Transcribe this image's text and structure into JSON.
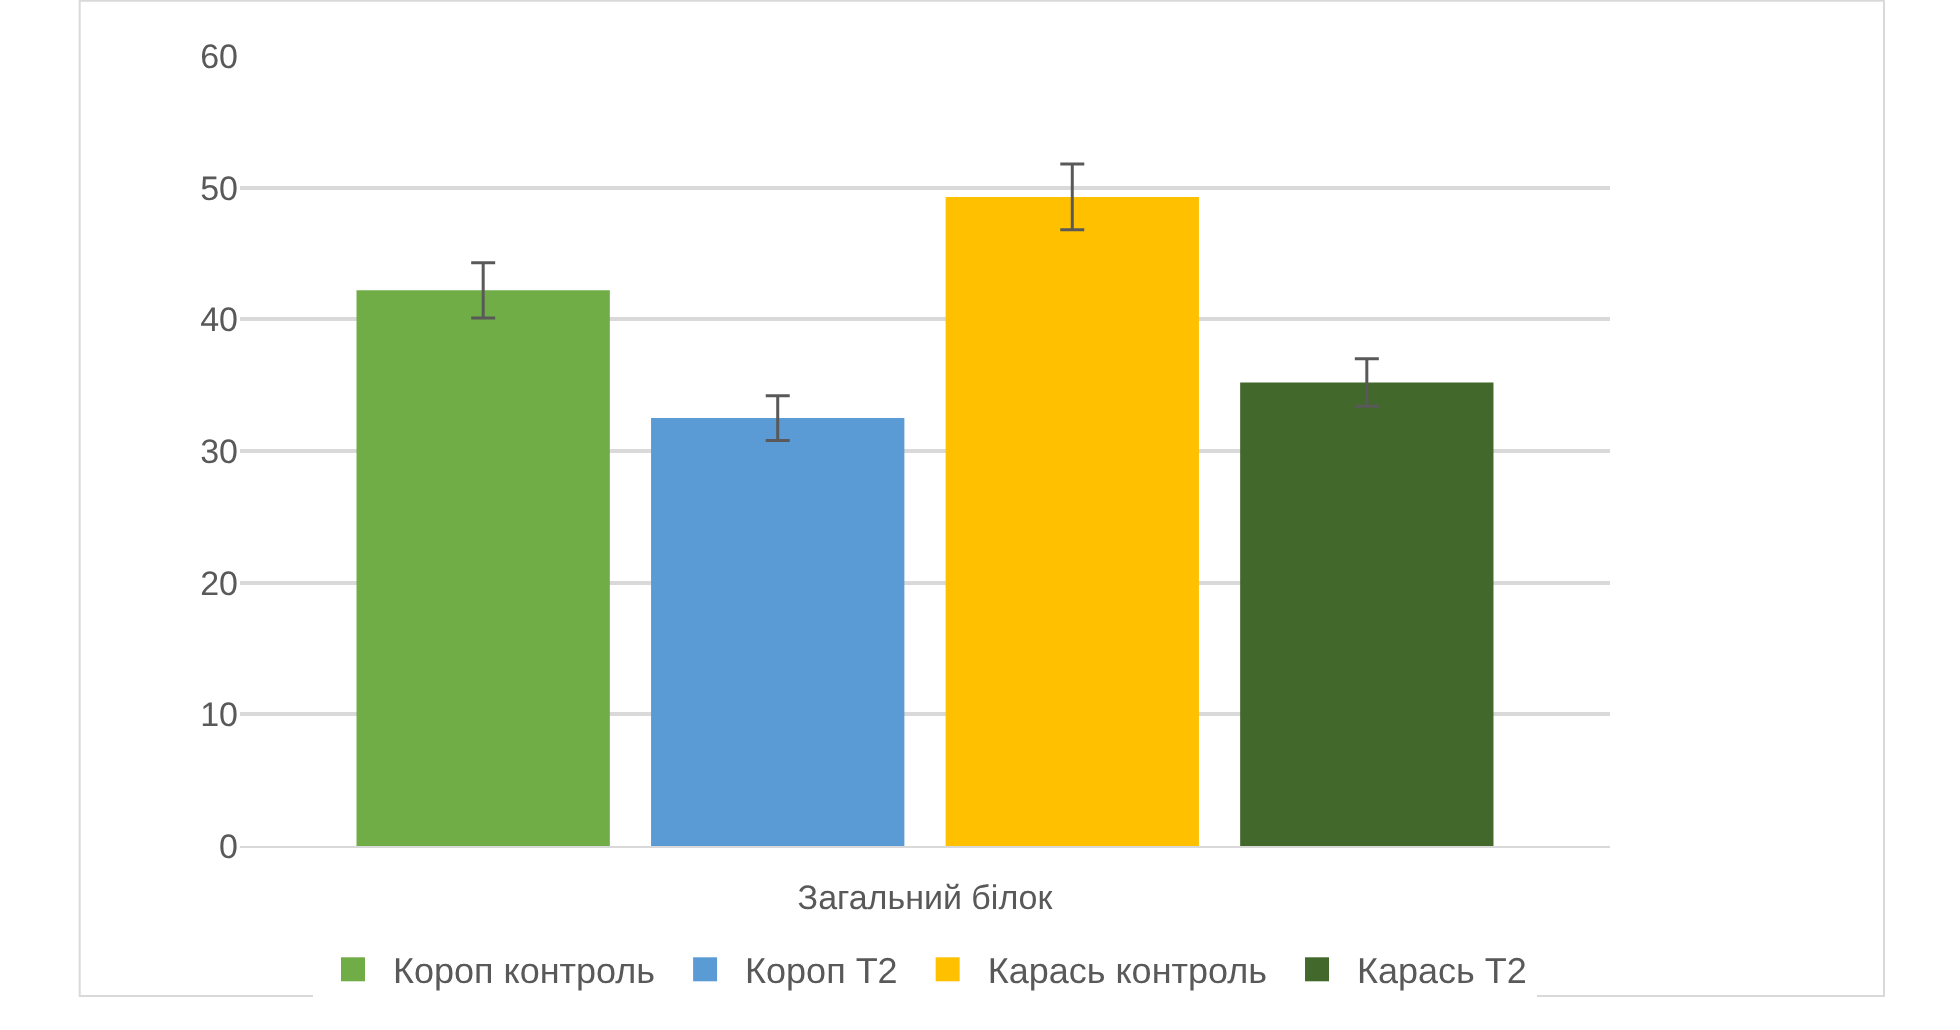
{
  "chart_data": {
    "type": "bar",
    "categories": [
      "Загальний білок"
    ],
    "series": [
      {
        "name": "Короп контроль",
        "color": "#70ad47",
        "values": [
          42.2
        ],
        "errors": [
          2.1
        ]
      },
      {
        "name": "Короп Т2",
        "color": "#5b9bd5",
        "values": [
          32.5
        ],
        "errors": [
          1.7
        ]
      },
      {
        "name": "Карась контроль",
        "color": "#ffc000",
        "values": [
          49.3
        ],
        "errors": [
          2.5
        ]
      },
      {
        "name": "Карась Т2",
        "color": "#43682b",
        "values": [
          35.2
        ],
        "errors": [
          1.8
        ]
      }
    ],
    "ylim": [
      0,
      60
    ],
    "yticks": [
      0,
      10,
      20,
      30,
      40,
      50,
      60
    ],
    "grid": "y",
    "legend": "bottom"
  }
}
